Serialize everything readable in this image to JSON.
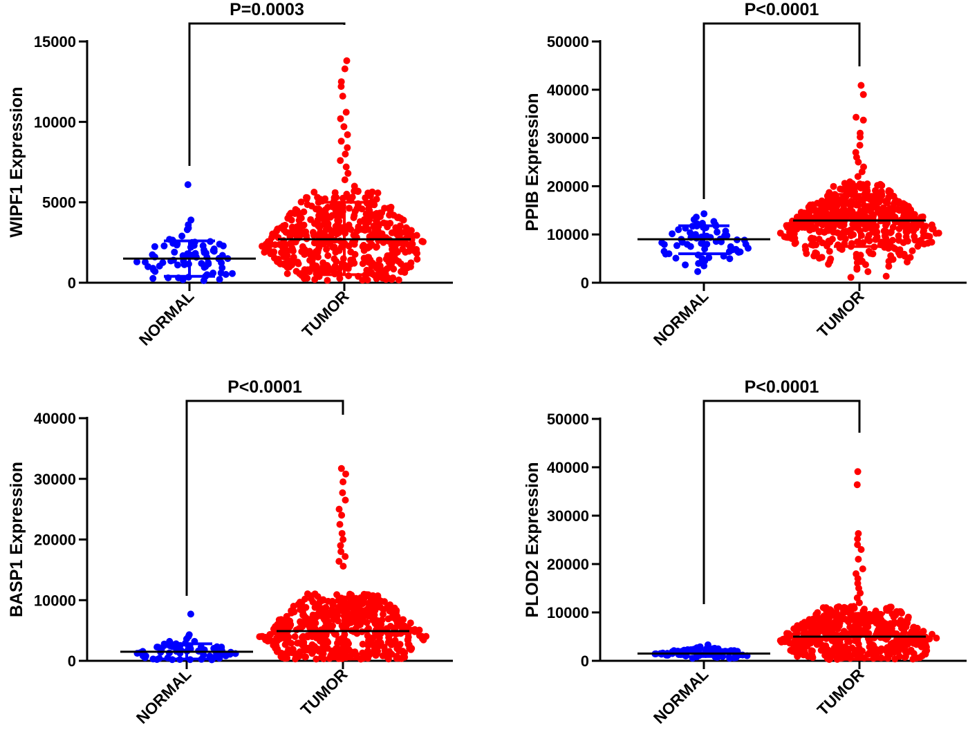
{
  "chart_data": [
    {
      "type": "scatter",
      "ylabel": "WIPF1 Expression",
      "p_value": "P=0.0003",
      "categories": [
        "NORMAL",
        "TUMOR"
      ],
      "ylim": [
        0,
        15000
      ],
      "yticks": [
        0,
        5000,
        10000,
        15000
      ],
      "colors": {
        "NORMAL": "#0000ff",
        "TUMOR": "#ff0000"
      },
      "series": [
        {
          "category": "NORMAL",
          "mean": 1500,
          "sd_low": 400,
          "sd_high": 2600,
          "n": 45,
          "max": 6100,
          "values": [
            6100,
            3900,
            3600,
            3400,
            3300,
            2900,
            2700,
            2500,
            2400,
            2300,
            2200,
            2100,
            2000,
            1900,
            1800,
            1700,
            1600,
            1500,
            1400,
            1300,
            1200,
            1100,
            1000,
            900,
            800,
            700,
            600,
            500,
            400,
            300,
            300
          ]
        },
        {
          "category": "TUMOR",
          "mean": 2700,
          "sd_low": 500,
          "sd_high": 5000,
          "n": 500,
          "max": 13800,
          "values": [
            13800,
            13300,
            12500,
            12200,
            11600,
            10600,
            10200,
            9700,
            9200,
            8800,
            8400,
            8000,
            7600,
            7200,
            6800,
            6400,
            6000,
            5600,
            5200
          ]
        }
      ]
    },
    {
      "type": "scatter",
      "ylabel": "PPIB Expression",
      "p_value": "P<0.0001",
      "categories": [
        "NORMAL",
        "TUMOR"
      ],
      "ylim": [
        0,
        50000
      ],
      "yticks": [
        0,
        10000,
        20000,
        30000,
        40000,
        50000
      ],
      "colors": {
        "NORMAL": "#0000ff",
        "TUMOR": "#ff0000"
      },
      "series": [
        {
          "category": "NORMAL",
          "mean": 9000,
          "sd_low": 6000,
          "sd_high": 11800,
          "n": 45,
          "max": 14300,
          "values": [
            14300,
            13600,
            13100,
            12700,
            12200,
            11800,
            11400,
            11000,
            10500,
            10000,
            9500,
            9000,
            8500,
            8000,
            7500,
            7000,
            6500,
            6000,
            5500,
            5000,
            4500,
            4000,
            3500,
            2300
          ]
        },
        {
          "category": "TUMOR",
          "mean": 12900,
          "sd_low": 7500,
          "sd_high": 18300,
          "n": 500,
          "max": 40900,
          "values": [
            40900,
            39000,
            34300,
            33700,
            31000,
            30200,
            28500,
            27000,
            26000,
            25000,
            24000,
            23000,
            22000
          ]
        }
      ]
    },
    {
      "type": "scatter",
      "ylabel": "BASP1 Expression",
      "p_value": "P<0.0001",
      "categories": [
        "NORMAL",
        "TUMOR"
      ],
      "ylim": [
        0,
        40000
      ],
      "yticks": [
        0,
        10000,
        20000,
        30000,
        40000
      ],
      "colors": {
        "NORMAL": "#0000ff",
        "TUMOR": "#ff0000"
      },
      "series": [
        {
          "category": "NORMAL",
          "mean": 1500,
          "sd_low": 300,
          "sd_high": 2800,
          "n": 45,
          "max": 7700,
          "values": [
            7700,
            4300,
            4000,
            3600,
            3200,
            2800,
            2500,
            2200,
            2000,
            1800,
            1600,
            1400,
            1200,
            1000,
            800,
            600,
            400,
            300,
            200
          ]
        },
        {
          "category": "TUMOR",
          "mean": 4900,
          "sd_low": 300,
          "sd_high": 9700,
          "n": 500,
          "max": 31700,
          "values": [
            31700,
            30800,
            29500,
            27700,
            26500,
            25000,
            24000,
            22500,
            21000,
            20000,
            19000,
            18000,
            17200,
            16400,
            15600
          ]
        }
      ]
    },
    {
      "type": "scatter",
      "ylabel": "PLOD2 Expression",
      "p_value": "P<0.0001",
      "categories": [
        "NORMAL",
        "TUMOR"
      ],
      "ylim": [
        0,
        50000
      ],
      "yticks": [
        0,
        10000,
        20000,
        30000,
        40000,
        50000
      ],
      "colors": {
        "NORMAL": "#0000ff",
        "TUMOR": "#ff0000"
      },
      "series": [
        {
          "category": "NORMAL",
          "mean": 1500,
          "sd_low": 900,
          "sd_high": 2300,
          "n": 45,
          "max": 3300,
          "values": [
            3300,
            2900,
            2700,
            2500,
            2400,
            2300,
            2200,
            2100,
            2000,
            1900,
            1800,
            1700,
            1600,
            1500,
            1400,
            1300,
            1200,
            1100,
            1000,
            900,
            800,
            700,
            600,
            500
          ]
        },
        {
          "category": "TUMOR",
          "mean": 5000,
          "sd_low": 300,
          "sd_high": 9800,
          "n": 500,
          "max": 39100,
          "values": [
            39100,
            36400,
            26300,
            25200,
            24000,
            23000,
            21000,
            19000,
            18000,
            17000,
            16000,
            15000,
            14000,
            13000,
            12000
          ]
        }
      ]
    }
  ]
}
